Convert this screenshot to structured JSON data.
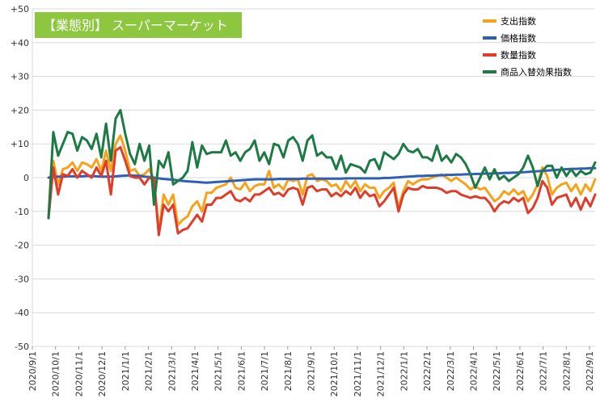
{
  "chart_data": {
    "type": "line",
    "title": "【業態別】 スーパーマーケット",
    "title_bg_color": "#8dc63f",
    "xlabel": "",
    "ylabel": "",
    "ylim": [
      -50,
      50
    ],
    "yticks": [
      50,
      40,
      30,
      20,
      10,
      0,
      -10,
      -20,
      -30,
      -40,
      -50
    ],
    "ytick_labels": [
      "+50",
      "+40",
      "+30",
      "+20",
      "+10",
      "0",
      "-10",
      "-20",
      "-30",
      "-40",
      "-50"
    ],
    "x_tick_labels": [
      "2020/9/1",
      "2020/10/1",
      "2020/11/1",
      "2020/12/1",
      "2021/1/1",
      "2021/2/1",
      "2021/3/1",
      "2021/4/1",
      "2021/5/1",
      "2021/6/1",
      "2021/7/1",
      "2021/8/1",
      "2021/9/1",
      "2021/10/1",
      "2021/11/1",
      "2021/12/1",
      "2022/1/1",
      "2022/2/1",
      "2022/3/1",
      "2022/4/1",
      "2022/5/1",
      "2022/6/1",
      "2022/7/1",
      "2022/8/1",
      "2022/9/1"
    ],
    "grid": true,
    "legend_position": "top-right",
    "series": [
      {
        "name": "支出指数",
        "color": "#f7a21b",
        "values": [
          -12,
          5,
          -2,
          2.5,
          3,
          4.5,
          2,
          4.5,
          4,
          3,
          5.5,
          2,
          8,
          2,
          10,
          12.5,
          8,
          2,
          2.5,
          0.5,
          1,
          2.5,
          -0.5,
          -16,
          -5,
          -8,
          -5,
          -14,
          -12.5,
          -11.5,
          -8.5,
          -7,
          -10,
          -4.5,
          -4.5,
          -3,
          -2.5,
          -2,
          0,
          -3,
          -3.5,
          -1.5,
          -4,
          -2.5,
          -2,
          -2,
          2,
          -3,
          -2,
          -3.5,
          -0.5,
          -1,
          -0.5,
          -5,
          0.5,
          1,
          -1,
          -0.5,
          -1,
          -2.5,
          -2,
          -4,
          -1,
          -3,
          -1,
          -4,
          -2,
          -3,
          -3,
          -6,
          -4,
          -3,
          -1.5,
          -9,
          -4,
          -1,
          -2,
          -1,
          -0.5,
          -0.5,
          0,
          0.5,
          1,
          0,
          -1,
          0,
          -1,
          -2,
          -3.5,
          -2.5,
          -3.5,
          -3,
          -5,
          -7,
          -6,
          -4,
          -5,
          -3.5,
          -5,
          -4,
          -7,
          -5,
          -2,
          3,
          0.5,
          -5,
          -3,
          -2,
          -1.5,
          -4,
          -2,
          -5,
          -2,
          -4,
          -0.5
        ]
      },
      {
        "name": "価格指数",
        "color": "#2e5fb8",
        "values": [
          0,
          0.2,
          0.3,
          0.3,
          0.4,
          0.4,
          0.4,
          0.4,
          0.5,
          0.5,
          0.4,
          0.3,
          0.3,
          0.3,
          0.4,
          0.5,
          0.6,
          0.7,
          0.6,
          0.5,
          0.3,
          0.2,
          0,
          -0.2,
          -0.4,
          -0.5,
          -0.6,
          -0.8,
          -1,
          -1.1,
          -1.2,
          -1.3,
          -1.4,
          -1.5,
          -1.4,
          -1.3,
          -1.2,
          -1.1,
          -1,
          -0.9,
          -0.8,
          -0.7,
          -0.6,
          -0.5,
          -0.5,
          -0.5,
          -0.5,
          -0.5,
          -0.4,
          -0.4,
          -0.4,
          -0.4,
          -0.4,
          -0.3,
          -0.3,
          -0.3,
          -0.3,
          -0.3,
          -0.3,
          -0.3,
          -0.3,
          -0.3,
          -0.2,
          -0.2,
          -0.2,
          -0.2,
          -0.2,
          -0.2,
          -0.2,
          -0.2,
          -0.1,
          -0.1,
          0,
          0.1,
          0.2,
          0.3,
          0.4,
          0.5,
          0.5,
          0.6,
          0.6,
          0.7,
          0.7,
          0.8,
          0.8,
          0.9,
          0.9,
          1,
          1,
          1.1,
          1.1,
          1.2,
          1.2,
          1.3,
          1.3,
          1.4,
          1.4,
          1.5,
          1.5,
          1.6,
          1.7,
          1.8,
          1.9,
          2,
          2.1,
          2.2,
          2.3,
          2.4,
          2.5,
          2.6,
          2.6,
          2.7,
          2.7,
          2.8,
          2.8
        ]
      },
      {
        "name": "数量指数",
        "color": "#e03c2a",
        "values": [
          -12,
          3,
          -5,
          1,
          0.5,
          2.5,
          0,
          2,
          1,
          0,
          3,
          0.5,
          5,
          -5,
          8,
          9,
          5,
          0.5,
          0,
          0,
          -2,
          0,
          -0.5,
          -17,
          -8,
          -10,
          -8,
          -16.5,
          -15.5,
          -15,
          -13,
          -11,
          -13,
          -8,
          -8,
          -6,
          -6,
          -5,
          -4,
          -6.5,
          -7,
          -6,
          -7,
          -5,
          -5,
          -4,
          -3,
          -5,
          -4.5,
          -5.5,
          -3.5,
          -3,
          -3.5,
          -8,
          -3,
          -2.5,
          -4,
          -3.5,
          -3.5,
          -5.5,
          -4.5,
          -5.5,
          -4,
          -5,
          -3,
          -6,
          -4,
          -5.5,
          -5,
          -8.5,
          -7,
          -5,
          -3,
          -10,
          -5,
          -3,
          -3.5,
          -3.5,
          -2.5,
          -3,
          -3,
          -3,
          -3.5,
          -4.5,
          -4,
          -4,
          -5,
          -5.5,
          -6,
          -5.5,
          -6,
          -6,
          -7.5,
          -10,
          -8,
          -7,
          -7.5,
          -6,
          -7,
          -6,
          -10.5,
          -9,
          -6,
          -1,
          -3,
          -8,
          -6,
          -5.5,
          -5,
          -8.5,
          -6,
          -9.5,
          -6,
          -8.5,
          -5
        ]
      },
      {
        "name": "商品入替効果指数",
        "color": "#1e7a45",
        "values": [
          -12,
          13.5,
          6.5,
          10,
          13.5,
          13,
          8,
          12,
          11,
          8.5,
          13,
          6,
          16,
          5,
          17.5,
          20,
          13,
          7,
          4,
          10,
          5,
          9.5,
          -8,
          5,
          3,
          7.5,
          -2,
          -1,
          0,
          2,
          10.5,
          3,
          9.5,
          7,
          7.5,
          7.5,
          7.5,
          11,
          6.5,
          7.5,
          5,
          7.5,
          8.5,
          11,
          5,
          7.5,
          4,
          10,
          9.5,
          6,
          11,
          12,
          10,
          5,
          11,
          12.5,
          6.5,
          7.5,
          6,
          6,
          2.5,
          6.5,
          1.5,
          4,
          3.5,
          3,
          1.5,
          5,
          5.5,
          2.5,
          7.5,
          6.5,
          5.5,
          7,
          10,
          8,
          7.5,
          8.5,
          6,
          6,
          5,
          9.5,
          5,
          6.5,
          4.5,
          7,
          6,
          4,
          1,
          -3,
          0,
          3,
          -0.5,
          2.5,
          -0.5,
          0.5,
          -1,
          0,
          1,
          3,
          6.5,
          3,
          -2.5,
          2,
          3.5,
          3.5,
          0,
          3,
          0.5,
          2.5,
          0.5,
          2,
          1,
          1.5,
          4.5
        ]
      }
    ]
  }
}
